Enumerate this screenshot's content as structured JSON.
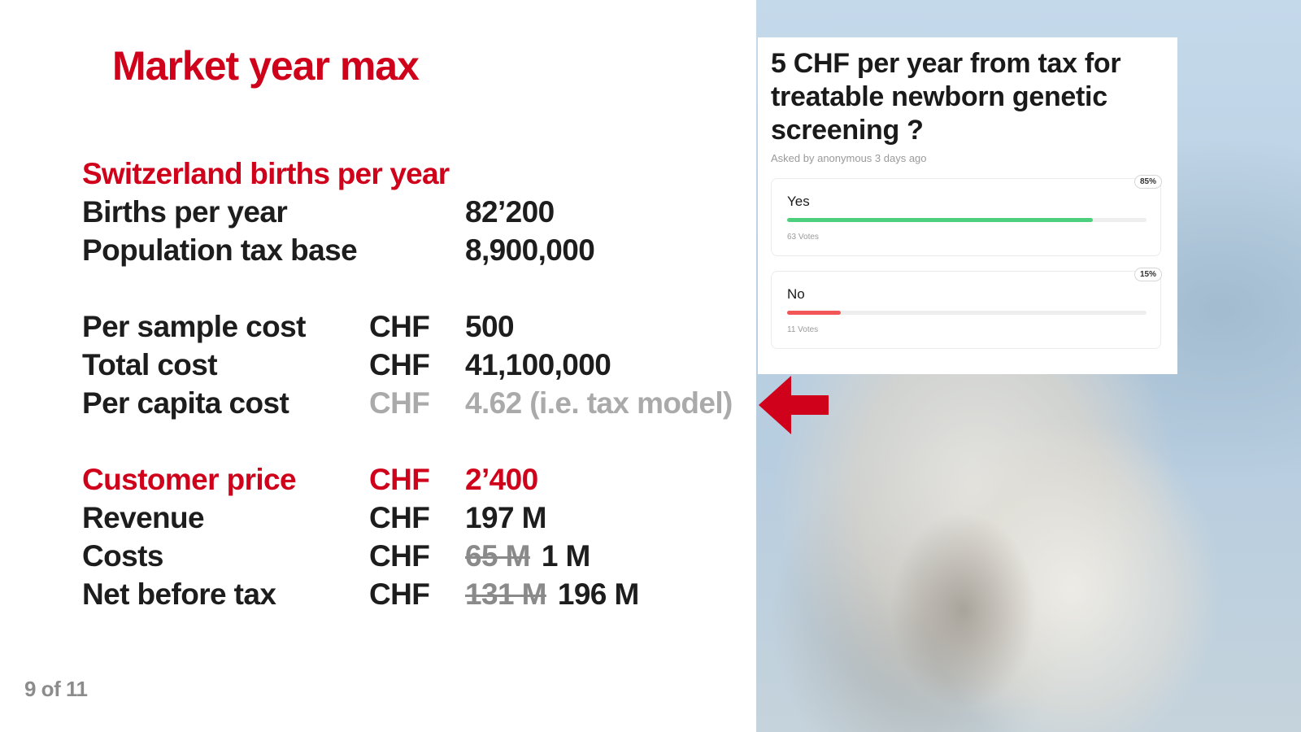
{
  "slide": {
    "title": "Market year max",
    "page_indicator": "9 of 11"
  },
  "births_section": {
    "heading": "Switzerland births per year",
    "rows": [
      {
        "label": "Births per year",
        "value": "82’200"
      },
      {
        "label": "Population tax base",
        "value": "8,900,000"
      }
    ]
  },
  "cost_section": {
    "rows": [
      {
        "label": "Per sample cost",
        "currency": "CHF",
        "value": "500"
      },
      {
        "label": "Total cost",
        "currency": "CHF",
        "value": "41,100,000"
      },
      {
        "label": "Per capita cost",
        "currency": "CHF",
        "value": "4.62 (i.e. tax model)"
      }
    ]
  },
  "revenue_section": {
    "customer_price": {
      "label": "Customer price",
      "currency": "CHF",
      "value": "2’400"
    },
    "revenue": {
      "label": "Revenue",
      "currency": "CHF",
      "value": "197 M"
    },
    "costs": {
      "label": "Costs",
      "currency": "CHF",
      "old_value": "65 M",
      "new_value": "1 M"
    },
    "net": {
      "label": "Net before tax",
      "currency": "CHF",
      "old_value": "131 M",
      "new_value": "196 M"
    }
  },
  "colors": {
    "accent_red": "#d0021b",
    "yes_bar": "#4cd07d",
    "no_bar": "#f25656"
  },
  "poll": {
    "question": "5 CHF per year from tax for treatable newborn genetic screening ?",
    "meta": "Asked by anonymous 3 days ago",
    "options": [
      {
        "label": "Yes",
        "percent_label": "85%",
        "fraction": 0.85,
        "votes": "63 Votes"
      },
      {
        "label": "No",
        "percent_label": "15%",
        "fraction": 0.15,
        "votes": "11 Votes"
      }
    ]
  }
}
